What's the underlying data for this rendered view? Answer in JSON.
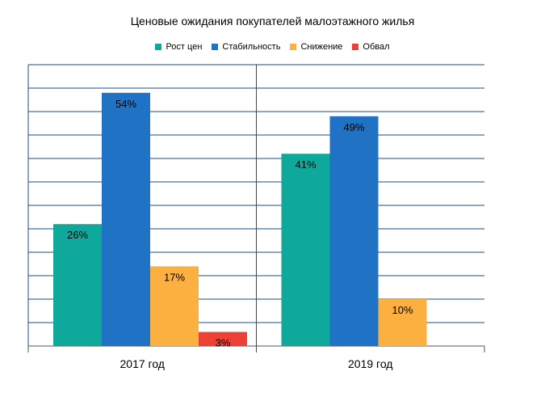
{
  "chart_data": {
    "type": "bar",
    "title": "Ценовые ожидания покупателей малоэтажного жилья",
    "categories": [
      "2017 год",
      "2019 год"
    ],
    "series": [
      {
        "name": "Рост цен",
        "color": "#0ea99a",
        "values": [
          26,
          41
        ],
        "labels": [
          "26%",
          "41%"
        ]
      },
      {
        "name": "Стабильность",
        "color": "#1f72c4",
        "values": [
          54,
          49
        ],
        "labels": [
          "54%",
          "49%"
        ]
      },
      {
        "name": "Снижение",
        "color": "#fbb040",
        "values": [
          17,
          10
        ],
        "labels": [
          "17%",
          "10%"
        ]
      },
      {
        "name": "Обвал",
        "color": "#ee4035",
        "values": [
          3,
          null
        ],
        "labels": [
          "3%",
          ""
        ]
      }
    ],
    "ylim": [
      0,
      60
    ],
    "grid": true,
    "legend_position": "top"
  }
}
